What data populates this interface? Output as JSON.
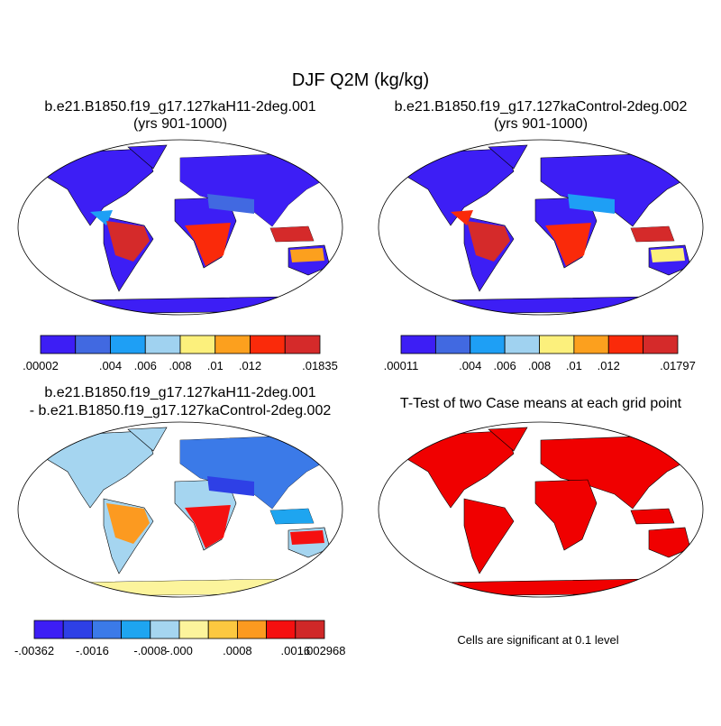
{
  "title": "DJF Q2M (kg/kg)",
  "panels": [
    {
      "title": [
        "b.e21.B1850.f19_g17.127kaH11-2deg.001",
        "(yrs 901-1000)"
      ],
      "colorbar": {
        "colors": [
          "#3d1ef5",
          "#4169e1",
          "#1e9ff5",
          "#a0d2f0",
          "#fcf07c",
          "#fca01e",
          "#fa2a0a",
          "#d52a2a"
        ],
        "labels": [
          {
            "edge": 0,
            "label": ".00002"
          },
          {
            "edge": 2,
            "label": ".004"
          },
          {
            "edge": 3,
            "label": ".006"
          },
          {
            "edge": 4,
            "label": ".008"
          },
          {
            "edge": 5,
            "label": ".01"
          },
          {
            "edge": 6,
            "label": ".012"
          },
          {
            "edge": 8,
            "label": ".01835"
          }
        ]
      }
    },
    {
      "title": [
        "b.e21.B1850.f19_g17.127kaControl-2deg.002",
        "(yrs 901-1000)"
      ],
      "colorbar": {
        "colors": [
          "#3d1ef5",
          "#4169e1",
          "#1e9ff5",
          "#a0d2f0",
          "#fcf07c",
          "#fca01e",
          "#fa2a0a",
          "#d52a2a"
        ],
        "labels": [
          {
            "edge": 0,
            "label": ".00011"
          },
          {
            "edge": 2,
            "label": ".004"
          },
          {
            "edge": 3,
            "label": ".006"
          },
          {
            "edge": 4,
            "label": ".008"
          },
          {
            "edge": 5,
            "label": ".01"
          },
          {
            "edge": 6,
            "label": ".012"
          },
          {
            "edge": 8,
            "label": ".01797"
          }
        ]
      }
    },
    {
      "title": [
        "b.e21.B1850.f19_g17.127kaH11-2deg.001",
        "- b.e21.B1850.f19_g17.127kaControl-2deg.002"
      ],
      "colorbar": {
        "colors": [
          "#3d1ef5",
          "#2e40e6",
          "#3b7ae8",
          "#1ea5f0",
          "#a5d5f0",
          "#fcf49c",
          "#fcc840",
          "#fc9a20",
          "#f51010",
          "#d02828"
        ],
        "labels": [
          {
            "edge": 0,
            "label": "-.00362"
          },
          {
            "edge": 2,
            "label": "-.0016"
          },
          {
            "edge": 4,
            "label": "-.0008"
          },
          {
            "edge": 5,
            "label": "-.000"
          },
          {
            "edge": 7,
            "label": ".0008"
          },
          {
            "edge": 9,
            "label": ".0016"
          },
          {
            "edge": 10,
            "label": ".002968"
          }
        ]
      }
    },
    {
      "title": [
        "T-Test of two Case means at each grid point"
      ],
      "note": "Cells are significant at 0.1 level"
    }
  ]
}
